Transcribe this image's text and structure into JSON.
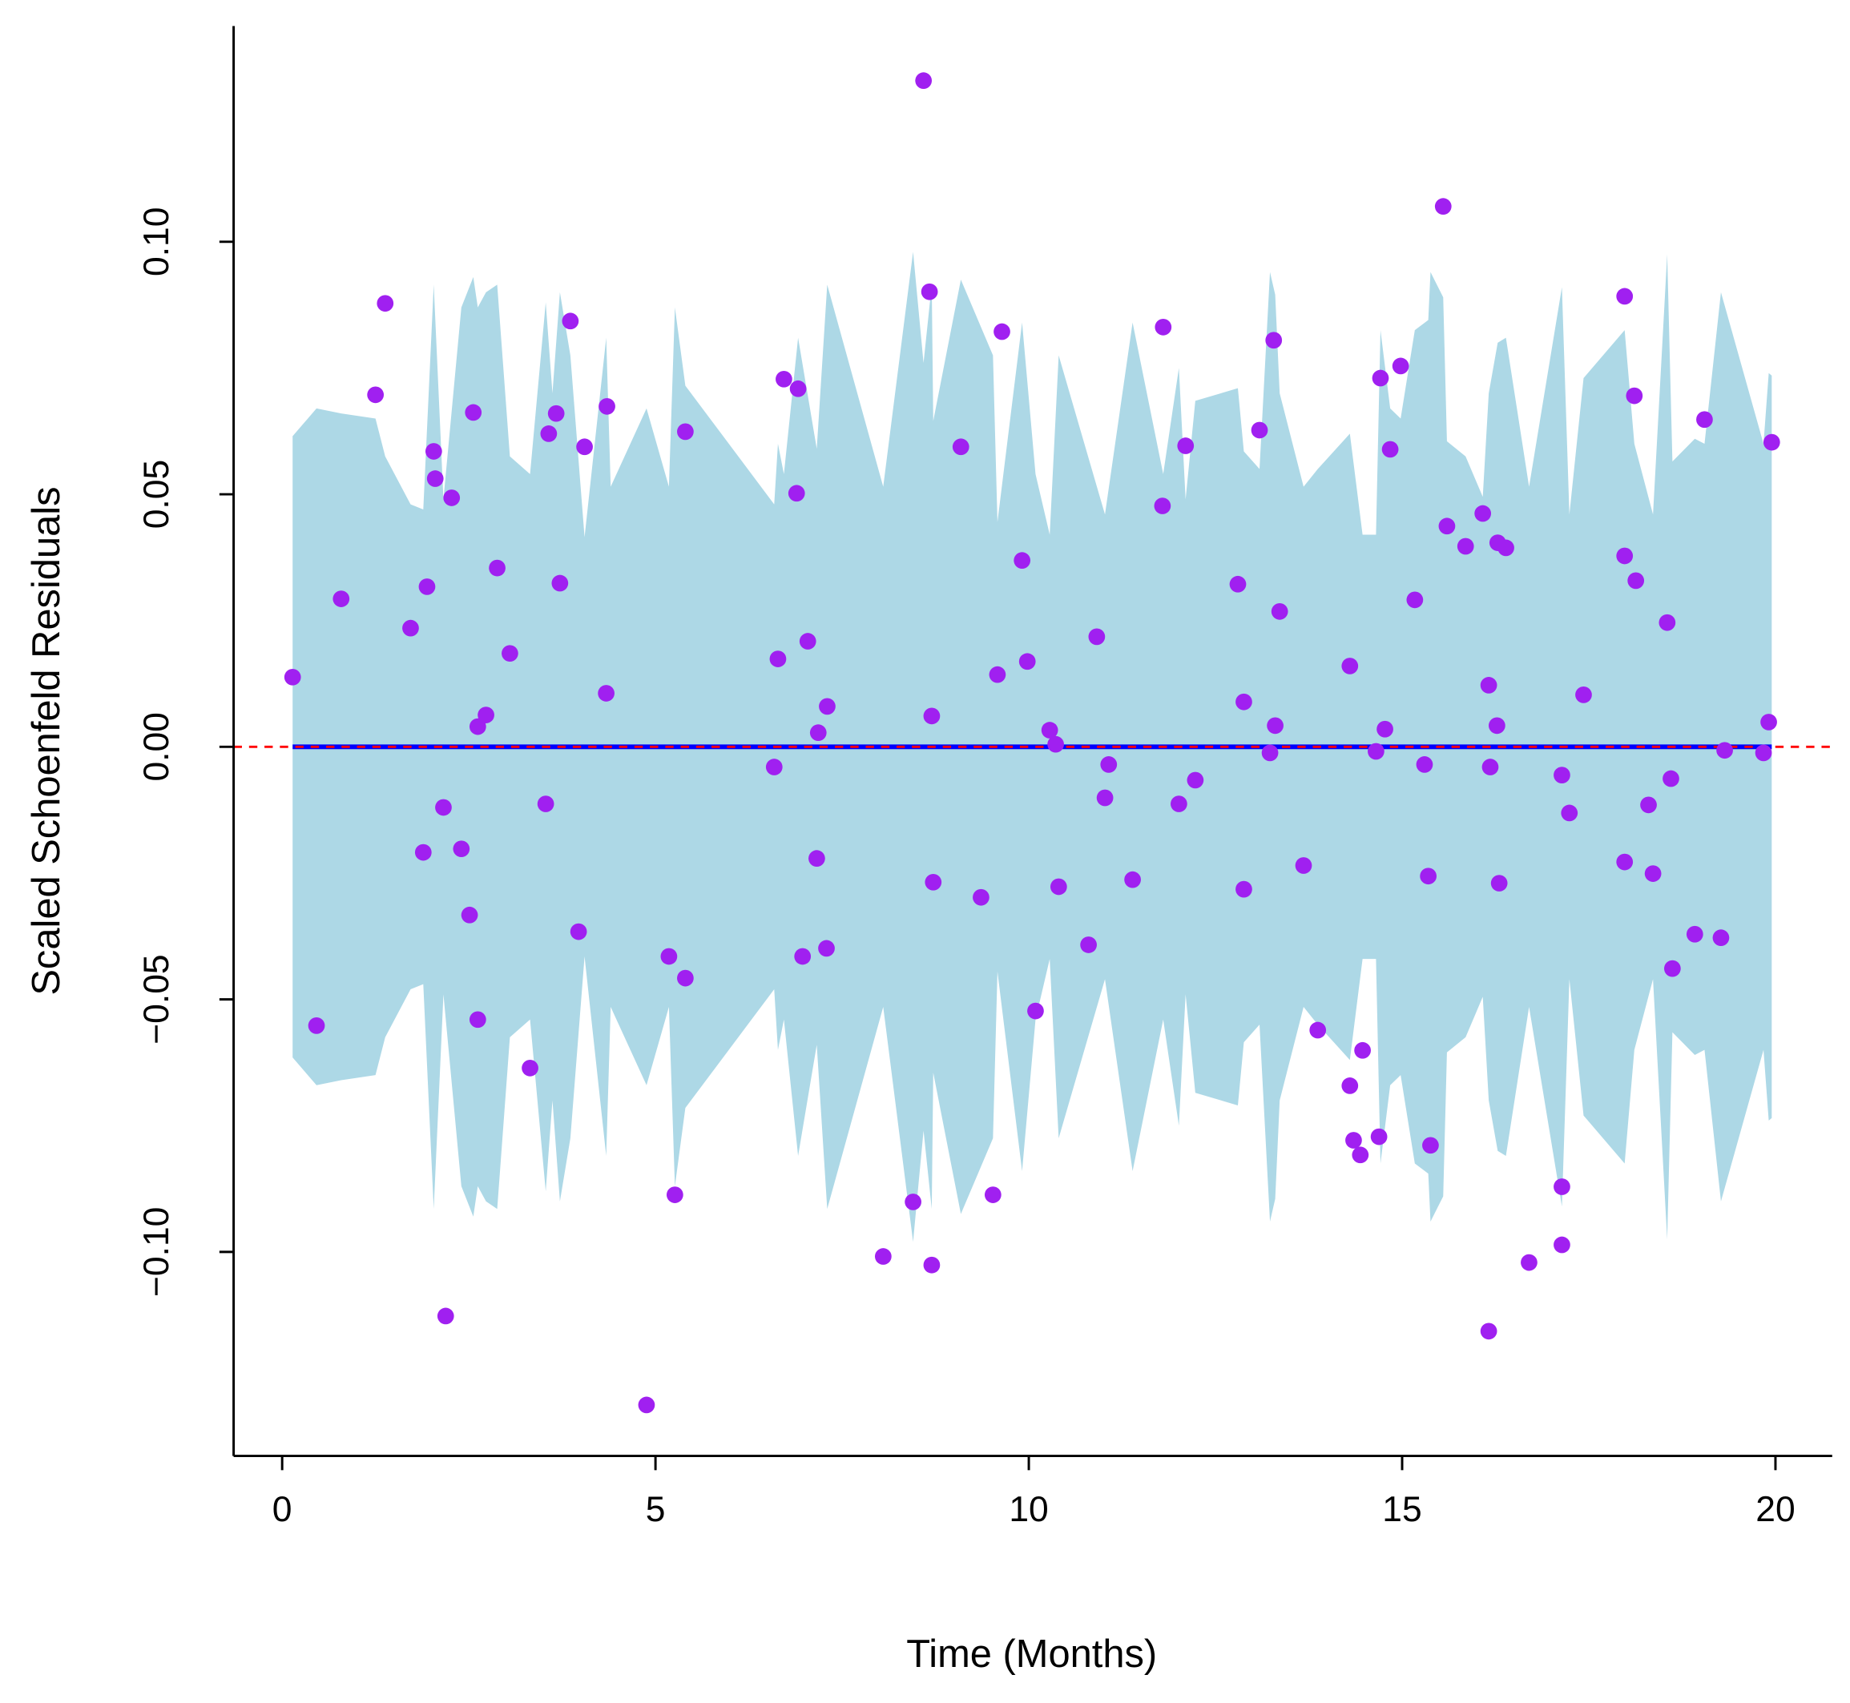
{
  "chart_data": {
    "type": "scatter",
    "xlabel": "Time (Months)",
    "ylabel": "Scaled Schoenfeld Residuals",
    "xlim": [
      -0.65,
      20.76
    ],
    "ylim": [
      -0.1404,
      0.1427
    ],
    "xticks": [
      0,
      5,
      10,
      15,
      20
    ],
    "yticks": [
      {
        "value": -0.1,
        "label": "−0.10"
      },
      {
        "value": -0.05,
        "label": "−0.05"
      },
      {
        "value": 0,
        "label": "0.00"
      },
      {
        "value": 0.05,
        "label": "0.05"
      },
      {
        "value": 0.1,
        "label": "0.10"
      }
    ],
    "hline": {
      "value": 0,
      "color": "#ff0000"
    },
    "fit": {
      "x": [
        0.14,
        19.95
      ],
      "values": [
        0,
        0
      ],
      "color": "#0000ff"
    },
    "band": {
      "color": "#add8e6",
      "x": [
        0.14,
        0.46,
        0.79,
        1.25,
        1.38,
        1.72,
        1.89,
        2.03,
        2.16,
        2.4,
        2.56,
        2.62,
        2.73,
        2.88,
        3.05,
        3.32,
        3.53,
        3.62,
        3.72,
        3.86,
        4.05,
        4.34,
        4.4,
        4.88,
        5.18,
        5.26,
        5.4,
        6.59,
        6.64,
        6.72,
        6.91,
        7.16,
        7.3,
        8.05,
        8.45,
        8.59,
        8.7,
        8.72,
        9.09,
        9.52,
        9.58,
        9.91,
        10.09,
        10.28,
        10.4,
        11.02,
        11.39,
        11.8,
        12.01,
        12.1,
        12.23,
        12.8,
        12.88,
        13.09,
        13.23,
        13.3,
        13.36,
        13.68,
        13.87,
        14.3,
        14.47,
        14.65,
        14.71,
        14.84,
        14.98,
        15.17,
        15.35,
        15.38,
        15.55,
        15.6,
        15.85,
        16.08,
        16.16,
        16.28,
        16.39,
        16.7,
        17.14,
        17.24,
        17.43,
        17.98,
        18.11,
        18.36,
        18.55,
        18.62,
        18.92,
        19.05,
        19.27,
        19.84,
        19.91,
        19.95
      ],
      "upper": [
        0.0615,
        0.067,
        0.066,
        0.065,
        0.0575,
        0.048,
        0.047,
        0.0915,
        0.049,
        0.087,
        0.093,
        0.087,
        0.09,
        0.0915,
        0.0575,
        0.054,
        0.088,
        0.07,
        0.09,
        0.0775,
        0.0415,
        0.081,
        0.0515,
        0.067,
        0.0515,
        0.087,
        0.0715,
        0.048,
        0.06,
        0.054,
        0.081,
        0.059,
        0.0915,
        0.0515,
        0.098,
        0.076,
        0.0915,
        0.0645,
        0.0925,
        0.0775,
        0.0445,
        0.084,
        0.054,
        0.042,
        0.0775,
        0.046,
        0.084,
        0.054,
        0.075,
        0.049,
        0.0685,
        0.071,
        0.0585,
        0.055,
        0.094,
        0.0895,
        0.07,
        0.0515,
        0.055,
        0.062,
        0.042,
        0.042,
        0.0825,
        0.067,
        0.065,
        0.0825,
        0.0845,
        0.094,
        0.089,
        0.0605,
        0.0575,
        0.0495,
        0.07,
        0.08,
        0.081,
        0.0515,
        0.091,
        0.046,
        0.073,
        0.0825,
        0.06,
        0.046,
        0.0975,
        0.0565,
        0.061,
        0.06,
        0.09,
        0.06,
        0.074,
        0.0735
      ],
      "lower": [
        -0.0615,
        -0.067,
        -0.066,
        -0.065,
        -0.0575,
        -0.048,
        -0.047,
        -0.0915,
        -0.049,
        -0.087,
        -0.093,
        -0.087,
        -0.09,
        -0.0915,
        -0.0575,
        -0.054,
        -0.088,
        -0.07,
        -0.09,
        -0.0775,
        -0.0415,
        -0.081,
        -0.0515,
        -0.067,
        -0.0515,
        -0.087,
        -0.0715,
        -0.048,
        -0.06,
        -0.054,
        -0.081,
        -0.059,
        -0.0915,
        -0.0515,
        -0.098,
        -0.076,
        -0.0915,
        -0.0645,
        -0.0925,
        -0.0775,
        -0.0445,
        -0.084,
        -0.054,
        -0.042,
        -0.0775,
        -0.046,
        -0.084,
        -0.054,
        -0.075,
        -0.049,
        -0.0685,
        -0.071,
        -0.0585,
        -0.055,
        -0.094,
        -0.0895,
        -0.07,
        -0.0515,
        -0.055,
        -0.062,
        -0.042,
        -0.042,
        -0.0825,
        -0.067,
        -0.065,
        -0.0825,
        -0.0845,
        -0.094,
        -0.089,
        -0.0605,
        -0.0575,
        -0.0495,
        -0.07,
        -0.08,
        -0.081,
        -0.0515,
        -0.091,
        -0.046,
        -0.073,
        -0.0825,
        -0.06,
        -0.046,
        -0.0975,
        -0.0565,
        -0.061,
        -0.06,
        -0.09,
        -0.06,
        -0.074,
        -0.0735
      ]
    },
    "series": [
      {
        "color": "#a020f0",
        "x": [
          0.14,
          0.46,
          0.79,
          1.25,
          1.38,
          1.72,
          1.89,
          1.94,
          2.03,
          2.05,
          2.16,
          2.19,
          2.27,
          2.4,
          2.51,
          2.56,
          2.62,
          2.62,
          2.73,
          2.88,
          3.05,
          3.32,
          3.53,
          3.57,
          3.67,
          3.72,
          3.86,
          3.97,
          4.05,
          4.34,
          4.35,
          4.88,
          5.18,
          5.26,
          5.4,
          5.4,
          6.59,
          6.64,
          6.72,
          6.89,
          6.91,
          6.97,
          7.04,
          7.16,
          7.18,
          7.29,
          7.3,
          8.05,
          8.45,
          8.59,
          8.67,
          8.7,
          8.7,
          8.72,
          9.09,
          9.36,
          9.52,
          9.58,
          9.64,
          9.91,
          9.98,
          10.09,
          10.28,
          10.36,
          10.4,
          10.8,
          10.91,
          11.02,
          11.07,
          11.39,
          11.8,
          11.79,
          12.01,
          12.1,
          12.23,
          12.8,
          12.88,
          12.88,
          13.09,
          13.23,
          13.28,
          13.3,
          13.36,
          13.68,
          13.87,
          14.3,
          14.3,
          14.35,
          14.44,
          14.47,
          14.65,
          14.69,
          14.71,
          14.77,
          14.84,
          14.98,
          15.17,
          15.3,
          15.35,
          15.38,
          15.55,
          15.6,
          15.85,
          16.08,
          16.16,
          16.18,
          16.16,
          16.27,
          16.28,
          16.3,
          16.39,
          16.7,
          17.14,
          17.14,
          17.14,
          17.24,
          17.43,
          17.98,
          17.98,
          17.98,
          18.11,
          18.13,
          18.3,
          18.36,
          18.55,
          18.6,
          18.62,
          18.92,
          19.05,
          19.27,
          19.32,
          19.84,
          19.91,
          19.95
        ],
        "values": [
          0.0138,
          -0.0552,
          0.0293,
          0.0697,
          0.0878,
          0.0235,
          -0.0209,
          0.0317,
          0.0585,
          0.0531,
          -0.012,
          -0.1127,
          0.0493,
          -0.0202,
          -0.0333,
          0.0662,
          0.004,
          -0.054,
          0.0063,
          0.0354,
          0.0185,
          -0.0636,
          -0.0113,
          0.062,
          0.066,
          0.0324,
          0.0843,
          -0.0366,
          0.0594,
          0.0106,
          0.0674,
          -0.1303,
          -0.0415,
          -0.0887,
          -0.0458,
          0.0624,
          -0.004,
          0.0174,
          0.0728,
          0.0502,
          0.0709,
          -0.0415,
          0.0209,
          -0.0221,
          0.0028,
          -0.0399,
          0.008,
          -0.1009,
          -0.0901,
          0.1319,
          0.0901,
          0.0061,
          -0.1026,
          -0.0268,
          0.0594,
          -0.0298,
          -0.0887,
          0.0143,
          0.0822,
          0.0369,
          0.0169,
          -0.0523,
          0.0033,
          0.0005,
          -0.0277,
          -0.0392,
          0.0218,
          -0.0101,
          -0.0035,
          -0.0263,
          0.0831,
          0.0477,
          -0.0113,
          0.0596,
          -0.0066,
          0.0322,
          -0.0282,
          0.0089,
          0.0627,
          -0.0012,
          0.0805,
          0.0042,
          0.0268,
          -0.0235,
          -0.0561,
          0.016,
          -0.0671,
          -0.0779,
          -0.0808,
          -0.0601,
          -0.0009,
          -0.0772,
          0.073,
          0.0035,
          0.0589,
          0.0754,
          0.0291,
          -0.0035,
          -0.0256,
          -0.0789,
          0.107,
          0.0437,
          0.0397,
          0.0462,
          0.0122,
          -0.004,
          -0.1157,
          0.0042,
          0.0404,
          -0.027,
          0.0394,
          -0.1021,
          -0.0056,
          -0.0871,
          -0.0986,
          -0.0131,
          0.0103,
          0.0892,
          0.0378,
          -0.0228,
          0.0695,
          0.0329,
          -0.0115,
          -0.0251,
          0.0246,
          -0.0063,
          -0.0439,
          -0.0371,
          0.0648,
          -0.0378,
          -0.0007,
          -0.0012,
          0.0049,
          0.0603
        ]
      }
    ]
  }
}
